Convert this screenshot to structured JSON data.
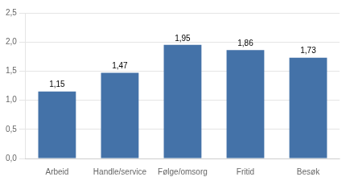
{
  "chart_data": {
    "type": "bar",
    "categories": [
      "Arbeid",
      "Handle/service",
      "Følge/omsorg",
      "Fritid",
      "Besøk"
    ],
    "values": [
      1.15,
      1.47,
      1.95,
      1.86,
      1.73
    ],
    "value_labels": [
      "1,15",
      "1,47",
      "1,95",
      "1,86",
      "1,73"
    ],
    "color": "#4472a8",
    "ylim": [
      0,
      2.5
    ],
    "yticks": [
      {
        "value": 0.0,
        "label": "0,0"
      },
      {
        "value": 0.5,
        "label": "0,5"
      },
      {
        "value": 1.0,
        "label": "1,0"
      },
      {
        "value": 1.5,
        "label": "1,5"
      },
      {
        "value": 2.0,
        "label": "2,0"
      },
      {
        "value": 2.5,
        "label": "2,5"
      }
    ],
    "grid": true,
    "data_labels": true
  }
}
